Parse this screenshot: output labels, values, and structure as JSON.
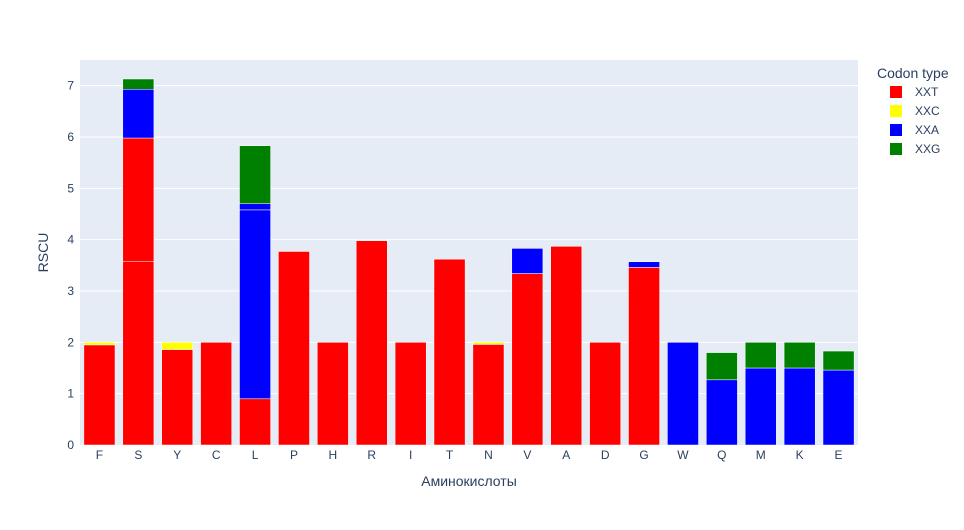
{
  "chart_data": {
    "type": "bar",
    "barmode": "stack",
    "xlabel": "Аминокислоты",
    "ylabel": "RSCU",
    "ylim": [
      0,
      7.5
    ],
    "yticks": [
      0,
      1,
      2,
      3,
      4,
      5,
      6,
      7
    ],
    "categories": [
      "F",
      "S",
      "Y",
      "C",
      "L",
      "P",
      "H",
      "R",
      "I",
      "T",
      "N",
      "V",
      "A",
      "D",
      "G",
      "W",
      "Q",
      "M",
      "K",
      "E"
    ],
    "legend": {
      "title": "Codon type",
      "position": "right"
    },
    "grid": true,
    "plot_background": "#e5ecf6",
    "series": [
      {
        "name": "XXT",
        "color": "#ff0000",
        "segments": [
          [
            1.95
          ],
          [
            3.58,
            2.4
          ],
          [
            1.86
          ],
          [
            2.0
          ],
          [
            0.9
          ],
          [
            3.77
          ],
          [
            2.0
          ],
          [
            3.98
          ],
          [
            2.0
          ],
          [
            3.62
          ],
          [
            1.96
          ],
          [
            3.34
          ],
          [
            3.87
          ],
          [
            2.0
          ],
          [
            3.46
          ],
          [
            0
          ],
          [
            0
          ],
          [
            0
          ],
          [
            0
          ],
          [
            0
          ]
        ]
      },
      {
        "name": "XXC",
        "color": "#ffff00",
        "segments": [
          [
            0.05
          ],
          [
            0
          ],
          [
            0.14
          ],
          [
            0
          ],
          [
            0
          ],
          [
            0
          ],
          [
            0
          ],
          [
            0
          ],
          [
            0
          ],
          [
            0
          ],
          [
            0.04
          ],
          [
            0
          ],
          [
            0
          ],
          [
            0
          ],
          [
            0
          ],
          [
            0
          ],
          [
            0
          ],
          [
            0
          ],
          [
            0
          ],
          [
            0
          ]
        ]
      },
      {
        "name": "XXA",
        "color": "#0000ff",
        "segments": [
          [
            0
          ],
          [
            0.95
          ],
          [
            0
          ],
          [
            0
          ],
          [
            3.68,
            0.12
          ],
          [
            0
          ],
          [
            0
          ],
          [
            0
          ],
          [
            0
          ],
          [
            0
          ],
          [
            0
          ],
          [
            0.49
          ],
          [
            0
          ],
          [
            0
          ],
          [
            0.11
          ],
          [
            2.0
          ],
          [
            1.27
          ],
          [
            1.5
          ],
          [
            1.5
          ],
          [
            1.46
          ]
        ]
      },
      {
        "name": "XXG",
        "color": "#008000",
        "segments": [
          [
            0
          ],
          [
            0.2
          ],
          [
            0
          ],
          [
            0
          ],
          [
            1.13
          ],
          [
            0
          ],
          [
            0
          ],
          [
            0
          ],
          [
            0
          ],
          [
            0
          ],
          [
            0
          ],
          [
            0
          ],
          [
            0
          ],
          [
            0
          ],
          [
            0
          ],
          [
            0
          ],
          [
            0.53
          ],
          [
            0.5
          ],
          [
            0.5
          ],
          [
            0.37
          ]
        ]
      }
    ]
  }
}
